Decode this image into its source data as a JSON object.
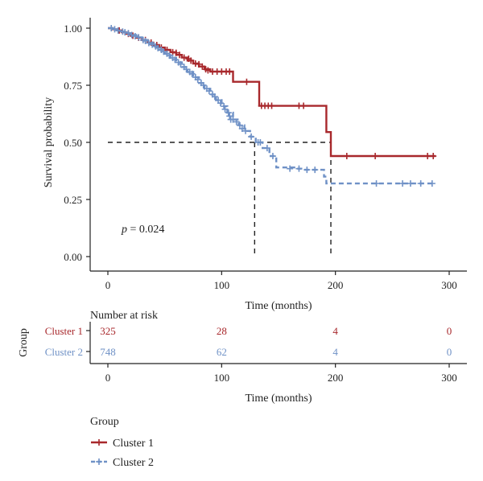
{
  "chart_data": {
    "type": "line",
    "kind": "kaplan-meier",
    "ylabel": "Survival probability",
    "xlabel": "Time (months)",
    "xlim": [
      0,
      300
    ],
    "ylim": [
      0,
      1
    ],
    "xticks": [
      "0",
      "100",
      "200",
      "300"
    ],
    "yticks": [
      "0.00",
      "0.25",
      "0.50",
      "0.75",
      "1.00"
    ],
    "grid": false,
    "pvalue_prefix": "p",
    "pvalue_text": " = 0.024",
    "median_line": {
      "y": 0.5,
      "x_values": [
        129,
        196
      ]
    },
    "series": [
      {
        "name": "Cluster 1",
        "color": "#a8282c",
        "dash": "solid",
        "steps": [
          [
            0,
            1.0
          ],
          [
            4,
            0.995
          ],
          [
            8,
            0.99
          ],
          [
            12,
            0.982
          ],
          [
            16,
            0.975
          ],
          [
            20,
            0.967
          ],
          [
            25,
            0.958
          ],
          [
            30,
            0.948
          ],
          [
            35,
            0.937
          ],
          [
            40,
            0.926
          ],
          [
            45,
            0.915
          ],
          [
            50,
            0.905
          ],
          [
            55,
            0.895
          ],
          [
            60,
            0.883
          ],
          [
            65,
            0.871
          ],
          [
            70,
            0.858
          ],
          [
            75,
            0.845
          ],
          [
            80,
            0.832
          ],
          [
            85,
            0.82
          ],
          [
            90,
            0.81
          ],
          [
            110,
            0.765
          ],
          [
            133,
            0.66
          ],
          [
            192,
            0.545
          ],
          [
            196,
            0.44
          ],
          [
            288,
            0.44
          ]
        ],
        "censor": [
          [
            10,
            0.99
          ],
          [
            18,
            0.975
          ],
          [
            22,
            0.967
          ],
          [
            27,
            0.958
          ],
          [
            33,
            0.948
          ],
          [
            38,
            0.937
          ],
          [
            43,
            0.926
          ],
          [
            47,
            0.915
          ],
          [
            52,
            0.905
          ],
          [
            57,
            0.895
          ],
          [
            60,
            0.892
          ],
          [
            63,
            0.883
          ],
          [
            67,
            0.871
          ],
          [
            71,
            0.866
          ],
          [
            73,
            0.858
          ],
          [
            77,
            0.845
          ],
          [
            80,
            0.842
          ],
          [
            83,
            0.832
          ],
          [
            86,
            0.82
          ],
          [
            88,
            0.815
          ],
          [
            92,
            0.81
          ],
          [
            96,
            0.81
          ],
          [
            100,
            0.81
          ],
          [
            104,
            0.81
          ],
          [
            107,
            0.81
          ],
          [
            122,
            0.765
          ],
          [
            135,
            0.66
          ],
          [
            138,
            0.66
          ],
          [
            141,
            0.66
          ],
          [
            144,
            0.66
          ],
          [
            168,
            0.66
          ],
          [
            172,
            0.66
          ],
          [
            210,
            0.44
          ],
          [
            235,
            0.44
          ],
          [
            281,
            0.44
          ],
          [
            286,
            0.44
          ]
        ]
      },
      {
        "name": "Cluster 2",
        "color": "#6f91c6",
        "dash": "dashed",
        "steps": [
          [
            0,
            1.0
          ],
          [
            4,
            0.995
          ],
          [
            8,
            0.99
          ],
          [
            12,
            0.985
          ],
          [
            16,
            0.978
          ],
          [
            20,
            0.97
          ],
          [
            25,
            0.96
          ],
          [
            30,
            0.948
          ],
          [
            35,
            0.935
          ],
          [
            40,
            0.92
          ],
          [
            45,
            0.905
          ],
          [
            50,
            0.888
          ],
          [
            55,
            0.87
          ],
          [
            60,
            0.85
          ],
          [
            65,
            0.83
          ],
          [
            70,
            0.808
          ],
          [
            75,
            0.785
          ],
          [
            80,
            0.76
          ],
          [
            85,
            0.735
          ],
          [
            90,
            0.71
          ],
          [
            95,
            0.685
          ],
          [
            100,
            0.658
          ],
          [
            105,
            0.63
          ],
          [
            110,
            0.6
          ],
          [
            115,
            0.575
          ],
          [
            120,
            0.55
          ],
          [
            125,
            0.525
          ],
          [
            130,
            0.5
          ],
          [
            136,
            0.475
          ],
          [
            142,
            0.44
          ],
          [
            148,
            0.39
          ],
          [
            165,
            0.385
          ],
          [
            170,
            0.38
          ],
          [
            190,
            0.35
          ],
          [
            192,
            0.32
          ],
          [
            288,
            0.32
          ]
        ],
        "censor": [
          [
            3,
            1.0
          ],
          [
            6,
            0.995
          ],
          [
            9,
            0.99
          ],
          [
            13,
            0.985
          ],
          [
            15,
            0.982
          ],
          [
            18,
            0.978
          ],
          [
            21,
            0.97
          ],
          [
            24,
            0.965
          ],
          [
            27,
            0.96
          ],
          [
            31,
            0.948
          ],
          [
            33,
            0.944
          ],
          [
            36,
            0.935
          ],
          [
            39,
            0.928
          ],
          [
            42,
            0.92
          ],
          [
            44,
            0.913
          ],
          [
            47,
            0.905
          ],
          [
            49,
            0.897
          ],
          [
            52,
            0.888
          ],
          [
            54,
            0.88
          ],
          [
            57,
            0.87
          ],
          [
            59,
            0.862
          ],
          [
            62,
            0.85
          ],
          [
            64,
            0.842
          ],
          [
            67,
            0.83
          ],
          [
            69,
            0.82
          ],
          [
            72,
            0.808
          ],
          [
            74,
            0.8
          ],
          [
            77,
            0.785
          ],
          [
            79,
            0.775
          ],
          [
            82,
            0.76
          ],
          [
            84,
            0.75
          ],
          [
            87,
            0.735
          ],
          [
            89,
            0.725
          ],
          [
            92,
            0.71
          ],
          [
            94,
            0.7
          ],
          [
            97,
            0.685
          ],
          [
            99,
            0.672
          ],
          [
            102,
            0.658
          ],
          [
            103,
            0.645
          ],
          [
            106,
            0.63
          ],
          [
            107,
            0.615
          ],
          [
            108,
            0.6
          ],
          [
            110,
            0.6
          ],
          [
            113,
            0.59
          ],
          [
            116,
            0.575
          ],
          [
            118,
            0.56
          ],
          [
            121,
            0.55
          ],
          [
            126,
            0.525
          ],
          [
            132,
            0.5
          ],
          [
            134,
            0.5
          ],
          [
            140,
            0.475
          ],
          [
            145,
            0.44
          ],
          [
            160,
            0.385
          ],
          [
            168,
            0.385
          ],
          [
            175,
            0.38
          ],
          [
            182,
            0.38
          ],
          [
            236,
            0.32
          ],
          [
            259,
            0.32
          ],
          [
            266,
            0.32
          ],
          [
            275,
            0.32
          ],
          [
            285,
            0.32
          ]
        ]
      }
    ],
    "risk_table": {
      "title": "Number at risk",
      "group_label": "Group",
      "xlabel": "Time (months)",
      "times": [
        0,
        100,
        200,
        300
      ],
      "xticks": [
        "0",
        "100",
        "200",
        "300"
      ],
      "rows": [
        {
          "name": "Cluster 1",
          "color": "#a8282c",
          "counts": [
            "325",
            "28",
            "4",
            "0"
          ]
        },
        {
          "name": "Cluster 2",
          "color": "#6f91c6",
          "counts": [
            "748",
            "62",
            "4",
            "0"
          ]
        }
      ]
    },
    "legend": {
      "title": "Group",
      "placement": "bottom-left",
      "items": [
        {
          "label": "Cluster 1",
          "color": "#a8282c",
          "dash": "solid"
        },
        {
          "label": "Cluster 2",
          "color": "#6f91c6",
          "dash": "dashed"
        }
      ]
    }
  }
}
